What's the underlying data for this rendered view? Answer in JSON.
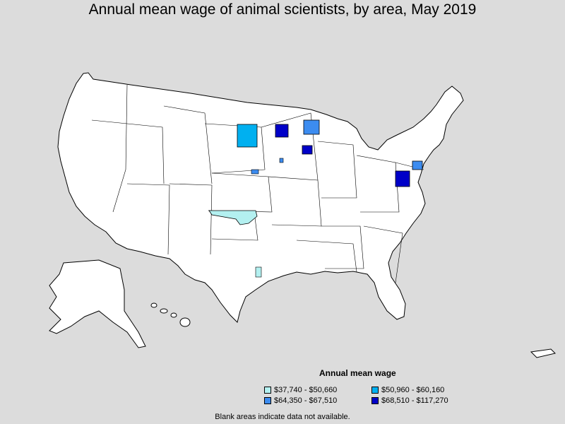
{
  "title": "Annual mean wage of animal scientists, by area, May 2019",
  "legend": {
    "title": "Annual mean wage",
    "items": [
      {
        "label": "$37,740 - $50,660",
        "color": "#b3f0f0"
      },
      {
        "label": "$50,960 - $60,160",
        "color": "#00b0f0"
      },
      {
        "label": "$64,350 - $67,510",
        "color": "#3c8cf0"
      },
      {
        "label": "$68,510 - $117,270",
        "color": "#0000c8"
      }
    ]
  },
  "note": "Blank areas indicate data not available.",
  "colors": {
    "background": "#dcdcdc",
    "land": "#ffffff",
    "border": "#000000"
  }
}
